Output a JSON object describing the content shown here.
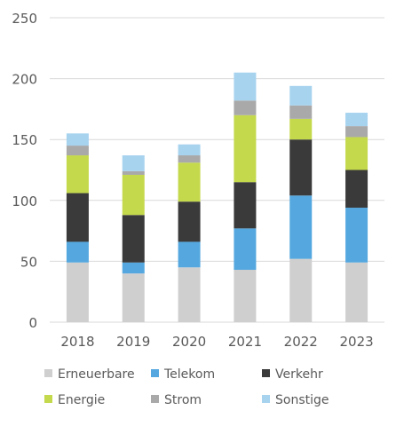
{
  "chart_data": {
    "type": "bar",
    "stacked": true,
    "categories": [
      "2018",
      "2019",
      "2020",
      "2021",
      "2022",
      "2023"
    ],
    "series": [
      {
        "name": "Erneuerbare",
        "color": "#d0cfcf",
        "values": [
          49,
          40,
          45,
          43,
          52,
          49
        ]
      },
      {
        "name": "Telekom",
        "color": "#55a8df",
        "values": [
          17,
          9,
          21,
          34,
          52,
          45
        ]
      },
      {
        "name": "Verkehr",
        "color": "#3a3a3a",
        "values": [
          40,
          39,
          33,
          38,
          46,
          31
        ]
      },
      {
        "name": "Energie",
        "color": "#c5d94c",
        "values": [
          31,
          33,
          32,
          55,
          17,
          27
        ]
      },
      {
        "name": "Strom",
        "color": "#a9a9a9",
        "values": [
          8,
          3,
          6,
          12,
          11,
          9
        ]
      },
      {
        "name": "Sonstige",
        "color": "#a7d3ef",
        "values": [
          10,
          13,
          9,
          23,
          16,
          11
        ]
      }
    ],
    "yticks": [
      "0",
      "50",
      "100",
      "150",
      "200",
      "250"
    ],
    "ylim": [
      0,
      250
    ],
    "grid": true,
    "legend_position": "bottom"
  }
}
